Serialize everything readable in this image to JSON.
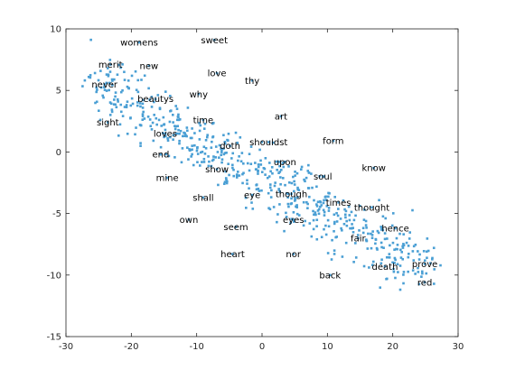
{
  "chart_data": {
    "type": "scatter",
    "title": "",
    "xlabel": "",
    "ylabel": "",
    "xlim": [
      -30,
      30
    ],
    "ylim": [
      -15,
      10
    ],
    "xticks": [
      -30,
      -20,
      -10,
      0,
      10,
      20,
      30
    ],
    "yticks": [
      -15,
      -10,
      -5,
      0,
      5,
      10
    ],
    "grid": false,
    "legend": "none",
    "marker_color": "#4a9fd4",
    "labels": [
      {
        "text": "womens",
        "x": -18.8,
        "y": 8.9
      },
      {
        "text": "sweet",
        "x": -7.3,
        "y": 9.1
      },
      {
        "text": "merit",
        "x": -23.2,
        "y": 7.1
      },
      {
        "text": "new",
        "x": -17.3,
        "y": 7.0
      },
      {
        "text": "love",
        "x": -6.9,
        "y": 6.4
      },
      {
        "text": "thy",
        "x": -1.5,
        "y": 5.8
      },
      {
        "text": "never",
        "x": -24.1,
        "y": 5.5
      },
      {
        "text": "beautys",
        "x": -16.3,
        "y": 4.3
      },
      {
        "text": "why",
        "x": -9.7,
        "y": 4.7
      },
      {
        "text": "art",
        "x": 2.9,
        "y": 2.9
      },
      {
        "text": "time",
        "x": -9.0,
        "y": 2.6
      },
      {
        "text": "sight",
        "x": -23.6,
        "y": 2.4
      },
      {
        "text": "loves",
        "x": -14.8,
        "y": 1.5
      },
      {
        "text": "doth",
        "x": -4.9,
        "y": 0.5
      },
      {
        "text": "shouldst",
        "x": 1.0,
        "y": 0.8
      },
      {
        "text": "form",
        "x": 10.9,
        "y": 0.9
      },
      {
        "text": "end",
        "x": -15.5,
        "y": -0.2
      },
      {
        "text": "upon",
        "x": 3.5,
        "y": -0.8
      },
      {
        "text": "soul",
        "x": 9.3,
        "y": -2.0
      },
      {
        "text": "know",
        "x": 17.1,
        "y": -1.3
      },
      {
        "text": "show",
        "x": -6.9,
        "y": -1.4
      },
      {
        "text": "mine",
        "x": -14.5,
        "y": -2.1
      },
      {
        "text": "shall",
        "x": -9.0,
        "y": -3.7
      },
      {
        "text": "eye",
        "x": -1.5,
        "y": -3.5
      },
      {
        "text": "though",
        "x": 4.5,
        "y": -3.4
      },
      {
        "text": "times",
        "x": 11.7,
        "y": -4.1
      },
      {
        "text": "thought",
        "x": 16.8,
        "y": -4.5
      },
      {
        "text": "own",
        "x": -11.2,
        "y": -5.5
      },
      {
        "text": "eyes",
        "x": 4.8,
        "y": -5.5
      },
      {
        "text": "seem",
        "x": -4.0,
        "y": -6.1
      },
      {
        "text": "hence",
        "x": 20.4,
        "y": -6.2
      },
      {
        "text": "fair",
        "x": 14.7,
        "y": -7.0
      },
      {
        "text": "heart",
        "x": -4.5,
        "y": -8.3
      },
      {
        "text": "nor",
        "x": 4.8,
        "y": -8.3
      },
      {
        "text": "death",
        "x": 18.8,
        "y": -9.3
      },
      {
        "text": "prove",
        "x": 24.9,
        "y": -9.1
      },
      {
        "text": "back",
        "x": 10.4,
        "y": -10.0
      },
      {
        "text": "red",
        "x": 24.9,
        "y": -10.6
      }
    ]
  }
}
